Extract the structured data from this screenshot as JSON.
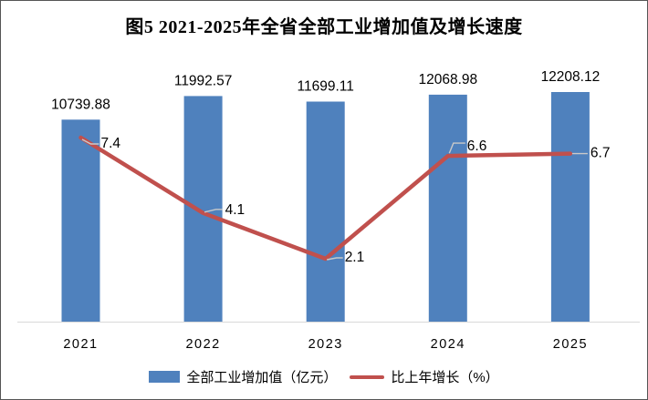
{
  "title": "图5 2021-2025年全省全部工业增加值及增长速度",
  "legend": {
    "bar_label": "全部工业增加值（亿元）",
    "line_label": "比上年增长（%）"
  },
  "colors": {
    "bar": "#4F81BD",
    "line": "#C0504D",
    "leader": "#c9c9c9",
    "axis_line": "#d9d9d9",
    "text": "#000000"
  },
  "chart_data": {
    "type": "combo",
    "title": "图5 2021-2025年全省全部工业增加值及增长速度",
    "categories": [
      "2021",
      "2022",
      "2023",
      "2024",
      "2025"
    ],
    "series": [
      {
        "name": "全部工业增加值（亿元）",
        "type": "bar",
        "axis": "primary",
        "color": "#4F81BD",
        "values": [
          10739.88,
          11992.57,
          11699.11,
          12068.98,
          12208.12
        ],
        "labels": [
          "10739.88",
          "11992.57",
          "11699.11",
          "12068.98",
          "12208.12"
        ]
      },
      {
        "name": "比上年增长（%）",
        "type": "line",
        "axis": "secondary",
        "color": "#C0504D",
        "values": [
          7.4,
          4.1,
          2.1,
          6.6,
          6.7
        ],
        "labels": [
          "7.4",
          "4.1",
          "2.1",
          "6.6",
          "6.7"
        ]
      }
    ],
    "xlabel": "",
    "ylabel": "",
    "primary_ylim": [
      0,
      12450
    ],
    "secondary_ylim": [
      0,
      9.6
    ],
    "grid": false,
    "legend_position": "bottom",
    "data_labels_visible": true,
    "y_axes_visible": false
  }
}
